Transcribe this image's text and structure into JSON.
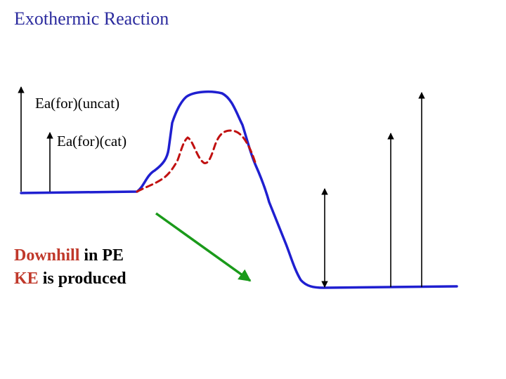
{
  "title": "Exothermic Reaction",
  "labels": {
    "uncatalyzed": "Ea(for)(uncat)",
    "catalyzed": "Ea(for)(cat)"
  },
  "notes": {
    "line1_highlight": "Downhill",
    "line1_rest": " in PE",
    "line2_highlight": "KE",
    "line2_rest": " is produced"
  },
  "colors": {
    "title": "#2b2b9e",
    "uncatalyzed_curve": "#1f1fd0",
    "catalyzed_curve": "#c01010",
    "downhill_arrow": "#1a9a1a",
    "highlight_text": "#c0392b"
  }
}
